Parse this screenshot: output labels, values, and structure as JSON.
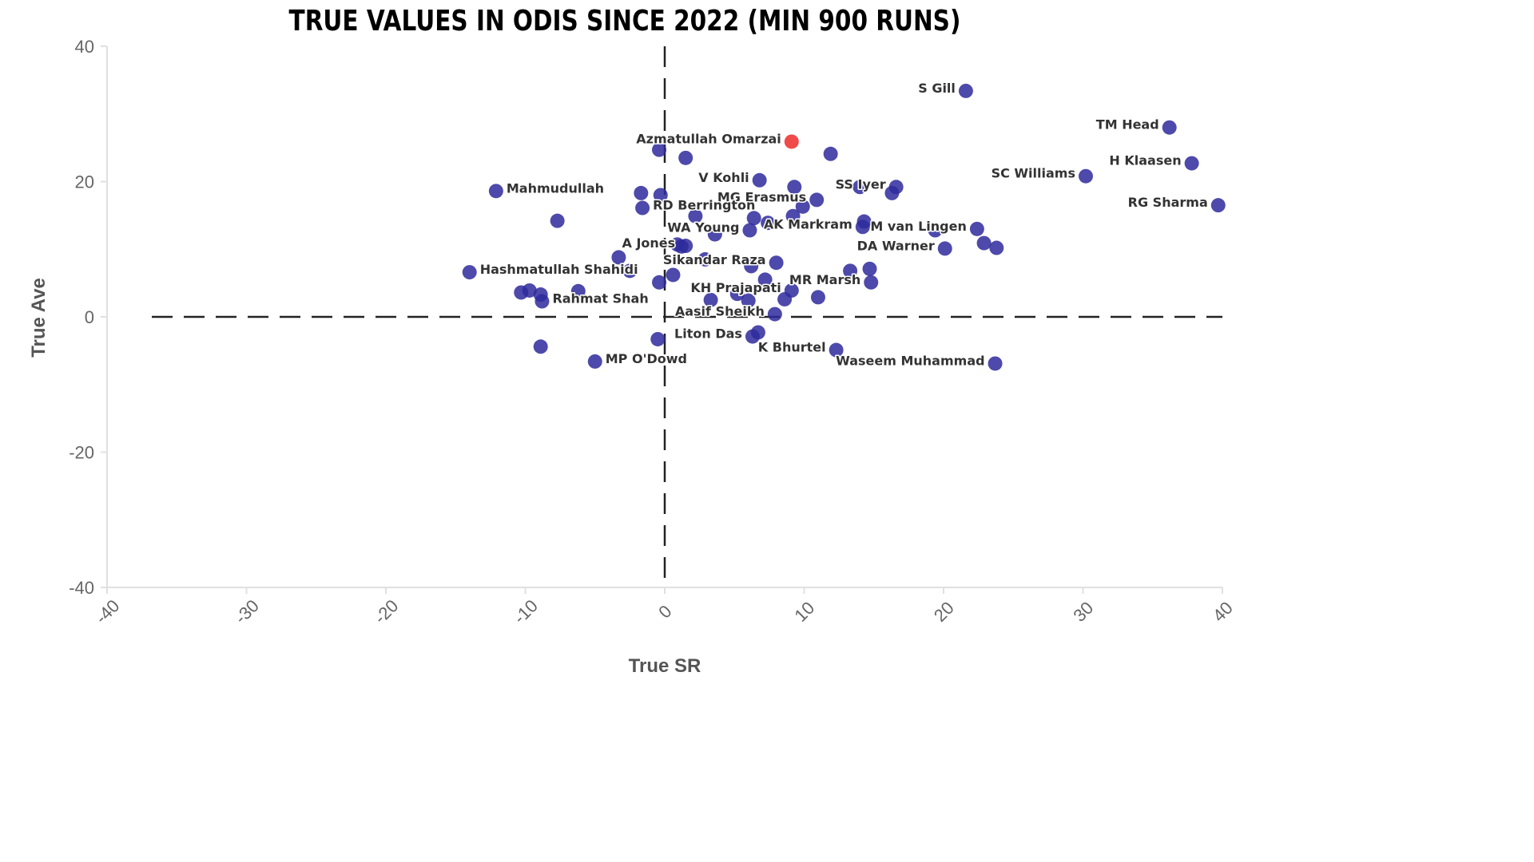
{
  "chart_data": {
    "type": "scatter",
    "title": "TRUE VALUES IN ODIS SINCE 2022 (MIN 900 RUNS)",
    "xlabel": "True SR",
    "ylabel": "True Ave",
    "xlim": [
      -40,
      40
    ],
    "ylim": [
      -40,
      40
    ],
    "xticks": [
      "-40",
      "-30",
      "-20",
      "-10",
      "0",
      "10",
      "20",
      "30",
      "40"
    ],
    "yticks": [
      "40",
      "20",
      "0",
      "-20",
      "-40"
    ],
    "reference_lines": [
      {
        "axis": "x",
        "value": 0,
        "style": "dashed"
      },
      {
        "axis": "y",
        "value": 0,
        "style": "dashed"
      }
    ],
    "grid": false,
    "colors": {
      "default": "#2e2a9c",
      "highlight": "#f04040",
      "label": "#333333",
      "axis": "#e0e0e0"
    },
    "points": [
      {
        "x": 21.6,
        "y": 33.4,
        "label": "S Gill",
        "align": "left"
      },
      {
        "x": 36.2,
        "y": 28.0,
        "label": "TM Head",
        "align": "left"
      },
      {
        "x": 9.1,
        "y": 25.9,
        "label": "Azmatullah Omarzai",
        "align": "left",
        "highlight": true
      },
      {
        "x": 37.8,
        "y": 22.7,
        "label": "H Klaasen",
        "align": "left"
      },
      {
        "x": 30.2,
        "y": 20.8,
        "label": "SC Williams",
        "align": "left"
      },
      {
        "x": 39.7,
        "y": 16.5,
        "label": "RG Sharma",
        "align": "left"
      },
      {
        "x": -12.1,
        "y": 18.6,
        "label": "Mahmudullah",
        "align": "right"
      },
      {
        "x": 6.8,
        "y": 20.2,
        "label": "V Kohli",
        "align": "left"
      },
      {
        "x": 16.6,
        "y": 19.2,
        "label": "SS Iyer",
        "align": "left"
      },
      {
        "x": 10.9,
        "y": 17.3,
        "label": "MG Erasmus",
        "align": "left"
      },
      {
        "x": -1.6,
        "y": 16.1,
        "label": "RD Berrington",
        "align": "right"
      },
      {
        "x": 6.1,
        "y": 12.8,
        "label": "WA Young",
        "align": "left"
      },
      {
        "x": 14.2,
        "y": 13.3,
        "label": "AK Markram",
        "align": "left"
      },
      {
        "x": 22.4,
        "y": 13.0,
        "label": "M van Lingen",
        "align": "left"
      },
      {
        "x": 20.1,
        "y": 10.1,
        "label": "DA Warner",
        "align": "left"
      },
      {
        "x": 1.5,
        "y": 10.5,
        "label": "A Jones",
        "align": "left"
      },
      {
        "x": 8.0,
        "y": 8.0,
        "label": "Sikandar Raza",
        "align": "left"
      },
      {
        "x": -14.0,
        "y": 6.6,
        "label": "Hashmatullah Shahidi",
        "align": "right"
      },
      {
        "x": 14.8,
        "y": 5.1,
        "label": "MR Marsh",
        "align": "left"
      },
      {
        "x": 9.1,
        "y": 3.9,
        "label": "KH Prajapati",
        "align": "left"
      },
      {
        "x": -8.8,
        "y": 2.3,
        "label": "Rahmat Shah",
        "align": "right"
      },
      {
        "x": 7.9,
        "y": 0.4,
        "label": "Aasif Sheikh",
        "align": "left"
      },
      {
        "x": 6.3,
        "y": -2.9,
        "label": "Liton Das",
        "align": "left"
      },
      {
        "x": 12.3,
        "y": -4.9,
        "label": "K Bhurtel",
        "align": "left"
      },
      {
        "x": -5.0,
        "y": -6.6,
        "label": "MP O'Dowd",
        "align": "right"
      },
      {
        "x": 23.7,
        "y": -6.9,
        "label": "Waseem Muhammad",
        "align": "left"
      },
      {
        "x": -0.4,
        "y": 24.7
      },
      {
        "x": 1.5,
        "y": 23.5
      },
      {
        "x": 11.9,
        "y": 24.1
      },
      {
        "x": 9.3,
        "y": 19.2
      },
      {
        "x": 16.3,
        "y": 18.3
      },
      {
        "x": -1.7,
        "y": 18.3
      },
      {
        "x": -0.3,
        "y": 18.0
      },
      {
        "x": 14.0,
        "y": 19.2
      },
      {
        "x": 9.9,
        "y": 16.3
      },
      {
        "x": -7.7,
        "y": 14.2
      },
      {
        "x": 2.2,
        "y": 14.9
      },
      {
        "x": 6.4,
        "y": 14.6
      },
      {
        "x": 7.4,
        "y": 13.9
      },
      {
        "x": 9.2,
        "y": 14.9
      },
      {
        "x": 14.3,
        "y": 14.1
      },
      {
        "x": 19.4,
        "y": 12.8
      },
      {
        "x": 3.6,
        "y": 12.2
      },
      {
        "x": 22.9,
        "y": 10.9
      },
      {
        "x": 23.8,
        "y": 10.2
      },
      {
        "x": 0.9,
        "y": 10.7
      },
      {
        "x": 1.2,
        "y": 10.4
      },
      {
        "x": -3.3,
        "y": 8.8
      },
      {
        "x": 2.9,
        "y": 8.5
      },
      {
        "x": 6.2,
        "y": 7.5
      },
      {
        "x": -2.5,
        "y": 6.8
      },
      {
        "x": 0.6,
        "y": 6.2
      },
      {
        "x": -0.4,
        "y": 5.1
      },
      {
        "x": 7.2,
        "y": 5.5
      },
      {
        "x": 13.3,
        "y": 6.8
      },
      {
        "x": 14.7,
        "y": 7.1
      },
      {
        "x": -9.7,
        "y": 3.9
      },
      {
        "x": -10.3,
        "y": 3.6
      },
      {
        "x": -8.9,
        "y": 3.3
      },
      {
        "x": -6.2,
        "y": 3.8
      },
      {
        "x": 5.2,
        "y": 3.4
      },
      {
        "x": 6.0,
        "y": 2.4
      },
      {
        "x": 3.3,
        "y": 2.5
      },
      {
        "x": 8.6,
        "y": 2.6
      },
      {
        "x": 11.0,
        "y": 2.9
      },
      {
        "x": 6.7,
        "y": -2.3
      },
      {
        "x": -0.5,
        "y": -3.3
      },
      {
        "x": -8.9,
        "y": -4.4
      }
    ]
  }
}
